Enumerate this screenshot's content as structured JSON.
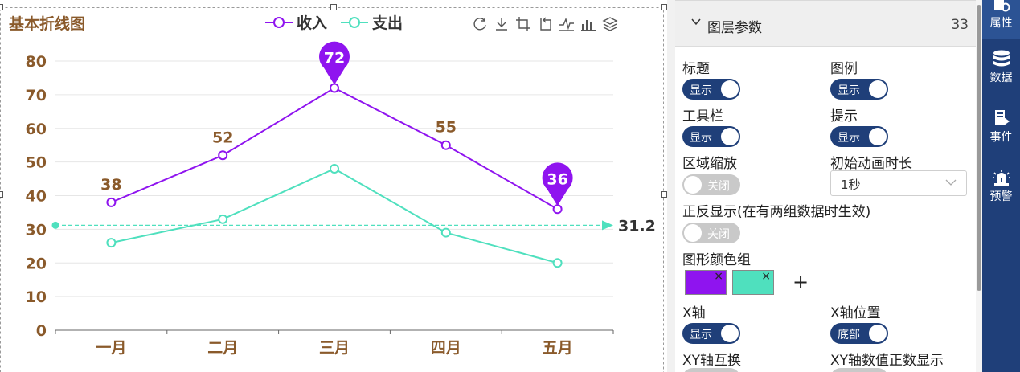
{
  "chart": {
    "legend": [
      {
        "name": "收入",
        "color": "#8f14ef"
      },
      {
        "name": "支出",
        "color": "#4fe0be"
      }
    ],
    "toolbox": [
      "refresh-icon",
      "download-icon",
      "crop-icon",
      "undo-zoom-icon",
      "line-chart-icon",
      "bar-chart-icon",
      "stack-icon"
    ]
  },
  "chart_data": {
    "type": "line",
    "title": "基本折线图",
    "categories": [
      "一月",
      "二月",
      "三月",
      "四月",
      "五月"
    ],
    "series": [
      {
        "name": "收入",
        "color": "#8f14ef",
        "values": [
          38,
          52,
          72,
          55,
          36
        ],
        "data_labels": [
          true,
          true,
          false,
          true,
          false
        ],
        "mark_points": [
          {
            "value": 72,
            "index": 2
          },
          {
            "value": 36,
            "index": 4
          }
        ]
      },
      {
        "name": "支出",
        "color": "#4fe0be",
        "values": [
          26,
          33,
          48,
          29,
          20
        ],
        "mark_line": {
          "value": 31.2,
          "label": "31.2"
        }
      }
    ],
    "y_ticks": [
      0,
      10,
      20,
      30,
      40,
      50,
      60,
      70,
      80
    ],
    "ylim": [
      0,
      80
    ],
    "grid": true,
    "legend_position": "top-center"
  },
  "panel": {
    "header_title": "图层参数",
    "header_count": "33",
    "fields": {
      "title_label": "标题",
      "title_switch": "显示",
      "legend_label": "图例",
      "legend_switch": "显示",
      "toolbar_label": "工具栏",
      "toolbar_switch": "显示",
      "tooltip_label": "提示",
      "tooltip_switch": "显示",
      "zoom_label": "区域缩放",
      "zoom_switch": "关闭",
      "anim_label": "初始动画时长",
      "anim_value": "1秒",
      "inverse_label": "正反显示(在有两组数据时生效)",
      "inverse_switch": "关闭",
      "palette_label": "图形颜色组",
      "xaxis_label": "X轴",
      "xaxis_switch": "显示",
      "xpos_label": "X轴位置",
      "xpos_switch": "底部",
      "swap_label": "XY轴互换",
      "positive_label": "XY轴数值正数显示"
    },
    "palette": [
      "#8f14ef",
      "#4fe0be"
    ]
  },
  "rail": [
    {
      "label": "属性",
      "icon": "properties-icon",
      "active": true
    },
    {
      "label": "数据",
      "icon": "database-icon",
      "active": false
    },
    {
      "label": "事件",
      "icon": "event-icon",
      "active": false
    },
    {
      "label": "预警",
      "icon": "alarm-icon",
      "active": false
    }
  ]
}
